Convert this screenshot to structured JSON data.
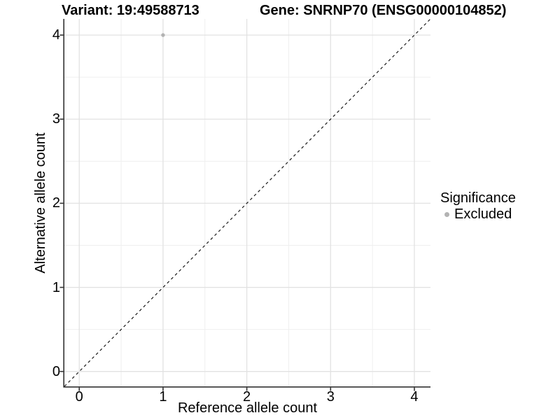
{
  "header": {
    "variant_title": "Variant: 19:49588713",
    "gene_title": "Gene: SNRNP70 (ENSG00000104852)"
  },
  "legend": {
    "title": "Significance",
    "items": [
      {
        "label": "Excluded",
        "marker": "dot-icon",
        "color": "#b3b3b3"
      }
    ]
  },
  "chart_data": {
    "type": "scatter",
    "title_left": "Variant: 19:49588713",
    "title_right": "Gene: SNRNP70 (ENSG00000104852)",
    "xlabel": "Reference allele count",
    "ylabel": "Alternative allele count",
    "xlim": [
      -0.1775,
      4.1925
    ],
    "ylim": [
      -0.1775,
      4.1925
    ],
    "x_ticks": [
      0,
      1,
      2,
      3,
      4
    ],
    "y_ticks": [
      0,
      1,
      2,
      3,
      4
    ],
    "x_minor_ticks": [
      0.5,
      1.5,
      2.5,
      3.5
    ],
    "y_minor_ticks": [
      0.5,
      1.5,
      2.5,
      3.5
    ],
    "grid": "major+minor",
    "legend_position": "right",
    "series": [
      {
        "name": "Excluded",
        "color": "#b3b3b3",
        "points": [
          {
            "x": 1,
            "y": 4
          }
        ]
      }
    ],
    "reference_line": {
      "type": "identity y=x",
      "style": "dashed",
      "color": "#1a1a1a",
      "x0": -0.1775,
      "y0": -0.1775,
      "x1": 4.1925,
      "y1": 4.1925
    }
  },
  "colors": {
    "background": "#ffffff",
    "axis_line": "#333333",
    "tick_mark": "#333333",
    "grid_major": "#e2e2e2",
    "grid_minor": "#efefef",
    "point": "#b3b3b3",
    "dashed_line": "#1a1a1a",
    "text": "#000000"
  }
}
